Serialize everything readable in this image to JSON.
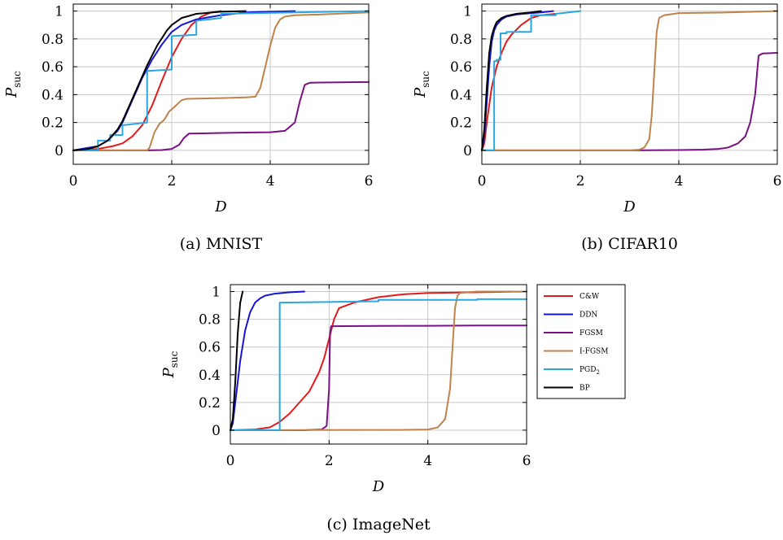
{
  "chart_data": [
    {
      "type": "line",
      "caption": "(a) MNIST",
      "xlabel": "D",
      "ylabel": "P",
      "ylabel_sub": "suc",
      "xlim": [
        0,
        6
      ],
      "ylim": [
        -0.1,
        1.05
      ],
      "xticks": [
        "0",
        "2",
        "4",
        "6"
      ],
      "yticks": [
        "0",
        "0.2",
        "0.4",
        "0.6",
        "0.8",
        "1"
      ],
      "grid": true,
      "series": [
        {
          "name": "C&W",
          "color": "#e31a1c",
          "x": [
            0,
            0.5,
            0.8,
            1.0,
            1.2,
            1.4,
            1.6,
            1.8,
            2.0,
            2.2,
            2.4,
            2.6,
            2.8,
            3.0
          ],
          "y": [
            0,
            0.01,
            0.03,
            0.05,
            0.1,
            0.18,
            0.32,
            0.5,
            0.67,
            0.8,
            0.9,
            0.96,
            0.99,
            1.0
          ]
        },
        {
          "name": "DDN",
          "color": "#1515d6",
          "x": [
            0,
            0.5,
            0.7,
            0.9,
            1.0,
            1.2,
            1.4,
            1.6,
            1.8,
            2.0,
            2.2,
            2.5,
            3.0,
            3.5,
            4.0,
            4.5
          ],
          "y": [
            0,
            0.03,
            0.07,
            0.14,
            0.2,
            0.36,
            0.52,
            0.65,
            0.76,
            0.85,
            0.9,
            0.94,
            0.97,
            0.99,
            0.995,
            1.0
          ]
        },
        {
          "name": "FGSM",
          "color": "#7b1085",
          "x": [
            0,
            1.5,
            1.8,
            2.0,
            2.15,
            2.25,
            2.35,
            3.0,
            3.5,
            4.0,
            4.3,
            4.5,
            4.6,
            4.7,
            4.8,
            5.0,
            6.0
          ],
          "y": [
            0,
            0,
            0.002,
            0.01,
            0.04,
            0.09,
            0.12,
            0.125,
            0.128,
            0.13,
            0.14,
            0.2,
            0.35,
            0.47,
            0.485,
            0.487,
            0.49
          ]
        },
        {
          "name": "I-FGSM",
          "color": "#c0834a",
          "x": [
            0,
            1.5,
            1.55,
            1.65,
            1.75,
            1.85,
            1.95,
            2.05,
            2.2,
            2.3,
            3.0,
            3.5,
            3.7,
            3.8,
            3.9,
            4.0,
            4.1,
            4.2,
            4.3,
            4.5,
            5.0,
            6.0
          ],
          "y": [
            0,
            0,
            0.02,
            0.13,
            0.19,
            0.22,
            0.28,
            0.31,
            0.36,
            0.37,
            0.375,
            0.38,
            0.385,
            0.45,
            0.6,
            0.75,
            0.88,
            0.94,
            0.96,
            0.97,
            0.975,
            0.99
          ]
        },
        {
          "name": "PGD2",
          "color": "#2aa7e0",
          "x": [
            0,
            0.5,
            0.5,
            0.75,
            0.75,
            1.0,
            1.0,
            1.5,
            1.5,
            2.0,
            2.0,
            2.5,
            2.5,
            3.0,
            3.0,
            6.0
          ],
          "y": [
            0,
            0,
            0.07,
            0.07,
            0.11,
            0.11,
            0.18,
            0.2,
            0.57,
            0.58,
            0.82,
            0.83,
            0.93,
            0.95,
            0.98,
            1.0
          ]
        },
        {
          "name": "BP",
          "color": "#000000",
          "x": [
            0,
            0.3,
            0.5,
            0.7,
            0.9,
            1.0,
            1.1,
            1.3,
            1.5,
            1.7,
            1.9,
            2.0,
            2.2,
            2.5,
            3.0,
            3.5
          ],
          "y": [
            0,
            0.01,
            0.03,
            0.07,
            0.15,
            0.21,
            0.29,
            0.45,
            0.61,
            0.75,
            0.86,
            0.9,
            0.95,
            0.98,
            0.995,
            1.0
          ]
        }
      ]
    },
    {
      "type": "line",
      "caption": "(b) CIFAR10",
      "xlabel": "D",
      "ylabel": "P",
      "ylabel_sub": "suc",
      "xlim": [
        0,
        6
      ],
      "ylim": [
        -0.1,
        1.05
      ],
      "xticks": [
        "0",
        "2",
        "4",
        "6"
      ],
      "yticks": [
        "0",
        "0.2",
        "0.4",
        "0.6",
        "0.8",
        "1"
      ],
      "grid": true,
      "series": [
        {
          "name": "C&W",
          "color": "#e31a1c",
          "x": [
            0,
            0.05,
            0.1,
            0.2,
            0.3,
            0.4,
            0.5,
            0.6,
            0.8,
            1.0,
            1.2,
            1.5
          ],
          "y": [
            0,
            0.05,
            0.2,
            0.45,
            0.6,
            0.7,
            0.78,
            0.83,
            0.9,
            0.95,
            0.97,
            0.98
          ]
        },
        {
          "name": "DDN",
          "color": "#1515d6",
          "x": [
            0,
            0.05,
            0.1,
            0.15,
            0.2,
            0.25,
            0.3,
            0.4,
            0.5,
            0.7,
            1.0,
            1.2,
            1.45
          ],
          "y": [
            0,
            0.1,
            0.35,
            0.6,
            0.78,
            0.86,
            0.9,
            0.94,
            0.96,
            0.975,
            0.985,
            0.99,
            1.0
          ]
        },
        {
          "name": "FGSM",
          "color": "#7b1085",
          "x": [
            0,
            3.0,
            4.0,
            4.5,
            4.8,
            5.0,
            5.2,
            5.35,
            5.45,
            5.55,
            5.62,
            5.7,
            6.0
          ],
          "y": [
            0,
            0,
            0.002,
            0.005,
            0.01,
            0.02,
            0.05,
            0.1,
            0.2,
            0.4,
            0.68,
            0.695,
            0.7
          ]
        },
        {
          "name": "I-FGSM",
          "color": "#c0834a",
          "x": [
            0,
            3.0,
            3.2,
            3.3,
            3.4,
            3.45,
            3.5,
            3.55,
            3.6,
            3.7,
            4.0,
            5.0,
            6.0
          ],
          "y": [
            0,
            0,
            0.005,
            0.02,
            0.08,
            0.25,
            0.55,
            0.85,
            0.95,
            0.97,
            0.985,
            0.99,
            1.0
          ]
        },
        {
          "name": "PGD2",
          "color": "#2aa7e0",
          "x": [
            0,
            0.25,
            0.25,
            0.3,
            0.3,
            0.38,
            0.38,
            0.5,
            0.5,
            1.0,
            1.0,
            1.5,
            1.5,
            2.0
          ],
          "y": [
            0,
            0,
            0.64,
            0.64,
            0.65,
            0.65,
            0.84,
            0.84,
            0.85,
            0.85,
            0.97,
            0.97,
            0.98,
            1.0
          ]
        },
        {
          "name": "BP",
          "color": "#000000",
          "x": [
            0,
            0.05,
            0.1,
            0.15,
            0.2,
            0.25,
            0.3,
            0.4,
            0.5,
            0.7,
            1.0,
            1.2
          ],
          "y": [
            0,
            0.15,
            0.45,
            0.7,
            0.82,
            0.88,
            0.92,
            0.95,
            0.965,
            0.98,
            0.99,
            1.0
          ]
        }
      ]
    },
    {
      "type": "line",
      "caption": "(c) ImageNet",
      "xlabel": "D",
      "ylabel": "P",
      "ylabel_sub": "suc",
      "xlim": [
        0,
        6
      ],
      "ylim": [
        -0.1,
        1.05
      ],
      "xticks": [
        "0",
        "2",
        "4",
        "6"
      ],
      "yticks": [
        "0",
        "0.2",
        "0.4",
        "0.6",
        "0.8",
        "1"
      ],
      "grid": true,
      "series": [
        {
          "name": "C&W",
          "color": "#e31a1c",
          "x": [
            0,
            0.5,
            0.8,
            1.0,
            1.2,
            1.4,
            1.6,
            1.8,
            1.9,
            2.0,
            2.1,
            2.2,
            2.5,
            3.0,
            3.5,
            4.0,
            5.0,
            6.0
          ],
          "y": [
            0,
            0.005,
            0.02,
            0.06,
            0.12,
            0.2,
            0.28,
            0.42,
            0.52,
            0.66,
            0.8,
            0.88,
            0.92,
            0.96,
            0.98,
            0.99,
            0.995,
            1.0
          ]
        },
        {
          "name": "DDN",
          "color": "#1515d6",
          "x": [
            0,
            0.05,
            0.1,
            0.2,
            0.3,
            0.4,
            0.5,
            0.6,
            0.7,
            0.9,
            1.2,
            1.5
          ],
          "y": [
            0,
            0.05,
            0.2,
            0.5,
            0.72,
            0.85,
            0.92,
            0.95,
            0.97,
            0.985,
            0.995,
            1.0
          ]
        },
        {
          "name": "FGSM",
          "color": "#7b1085",
          "x": [
            0,
            1.5,
            1.85,
            1.95,
            2.0,
            2.02,
            2.04,
            3.0,
            4.0,
            5.0,
            6.0
          ],
          "y": [
            0,
            0,
            0.005,
            0.03,
            0.3,
            0.7,
            0.75,
            0.752,
            0.753,
            0.755,
            0.755
          ]
        },
        {
          "name": "I-FGSM",
          "color": "#c0834a",
          "x": [
            0,
            3.5,
            4.0,
            4.2,
            4.35,
            4.45,
            4.5,
            4.55,
            4.6,
            4.65,
            4.8,
            5.0,
            6.0
          ],
          "y": [
            0,
            0.002,
            0.005,
            0.02,
            0.08,
            0.3,
            0.6,
            0.88,
            0.97,
            0.99,
            0.995,
            1.0,
            1.0
          ]
        },
        {
          "name": "PGD2",
          "color": "#2aa7e0",
          "x": [
            0,
            1.0,
            1.0,
            3.0,
            3.0,
            5.0,
            5.0,
            6.0
          ],
          "y": [
            0,
            0,
            0.92,
            0.93,
            0.94,
            0.94,
            0.945,
            0.945
          ]
        },
        {
          "name": "BP",
          "color": "#000000",
          "x": [
            0,
            0.05,
            0.1,
            0.15,
            0.2,
            0.25
          ],
          "y": [
            0,
            0.08,
            0.35,
            0.7,
            0.92,
            1.0
          ]
        }
      ]
    }
  ],
  "legend": {
    "placement": "right",
    "entries": [
      {
        "label": "C&W",
        "color": "#e31a1c"
      },
      {
        "label": "DDN",
        "color": "#1515d6"
      },
      {
        "label": "FGSM",
        "color": "#7b1085"
      },
      {
        "label": "I-FGSM",
        "color": "#c0834a"
      },
      {
        "label": "PGD",
        "sub": "2",
        "color": "#2aa7e0"
      },
      {
        "label": "BP",
        "color": "#000000"
      }
    ]
  }
}
